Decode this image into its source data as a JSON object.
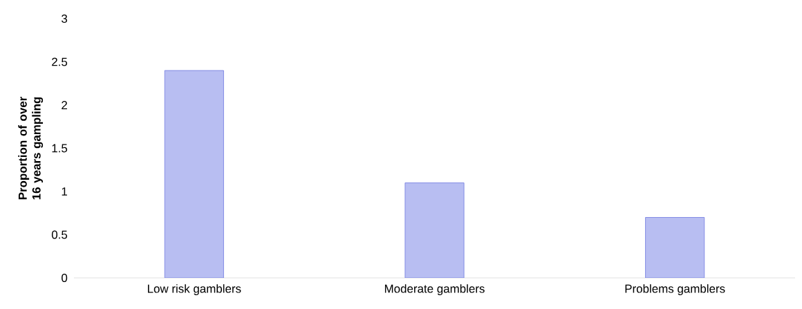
{
  "chart_data": {
    "type": "bar",
    "ylabel": "Proportion of over 16 years gampling",
    "categories": [
      "Low risk gamblers",
      "Moderate gamblers",
      "Problems gamblers"
    ],
    "values": [
      2.4,
      1.1,
      0.7
    ],
    "color": "#b8bef2",
    "ylim": [
      0,
      3
    ],
    "yticks": [
      0,
      0.5,
      1,
      1.5,
      2,
      2.5,
      3
    ],
    "grid": false
  }
}
